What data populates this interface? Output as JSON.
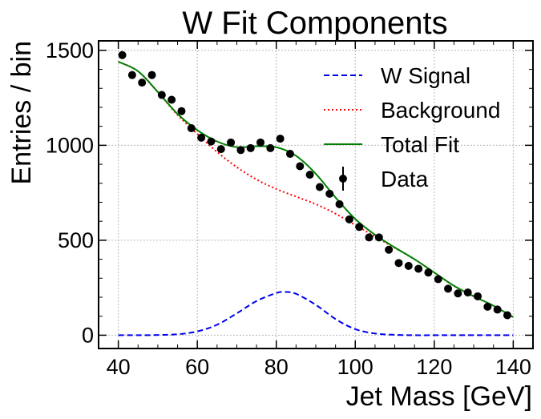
{
  "chart_data": {
    "type": "line",
    "title": "W Fit Components",
    "xlabel": "Jet Mass [GeV]",
    "ylabel": "Entries / bin",
    "xlim": [
      35,
      145
    ],
    "ylim": [
      -70,
      1550
    ],
    "xticks": [
      40,
      60,
      80,
      100,
      120,
      140
    ],
    "yticks": [
      0,
      500,
      1000,
      1500
    ],
    "x_minor_step": 5,
    "y_minor_step": 100,
    "grid": true,
    "legend_position": "top-right",
    "legend": {
      "signal": "W Signal",
      "background": "Background",
      "total": "Total Fit",
      "data": "Data"
    },
    "colors": {
      "signal": "#0000ee",
      "background": "#ff0000",
      "total": "#008000",
      "data": "#000000"
    },
    "series": [
      {
        "name": "W Signal",
        "style": "dashed",
        "x": [
          40,
          45,
          50,
          55,
          60,
          65,
          70,
          75,
          80,
          82,
          85,
          90,
          95,
          100,
          105,
          110,
          115,
          120,
          125,
          130,
          135,
          140
        ],
        "y": [
          0,
          0,
          1,
          5,
          20,
          55,
          115,
          180,
          222,
          228,
          218,
          160,
          85,
          32,
          9,
          2,
          0,
          0,
          0,
          0,
          0,
          0
        ]
      },
      {
        "name": "Background",
        "style": "dotted",
        "x": [
          40,
          45,
          50,
          55,
          60,
          65,
          70,
          75,
          80,
          85,
          90,
          95,
          100,
          105,
          110,
          115,
          120,
          125,
          130,
          135,
          140
        ],
        "y": [
          1440,
          1390,
          1280,
          1160,
          1060,
          965,
          885,
          820,
          770,
          730,
          690,
          640,
          580,
          520,
          460,
          400,
          330,
          260,
          205,
          155,
          95
        ]
      },
      {
        "name": "Total Fit",
        "style": "solid",
        "x": [
          40,
          45,
          50,
          55,
          60,
          65,
          70,
          75,
          80,
          85,
          90,
          95,
          100,
          105,
          110,
          115,
          120,
          125,
          130,
          135,
          140
        ],
        "y": [
          1440,
          1390,
          1281,
          1165,
          1080,
          1020,
          990,
          995,
          990,
          945,
          850,
          725,
          612,
          529,
          462,
          400,
          330,
          260,
          205,
          155,
          95
        ]
      }
    ],
    "data_points": {
      "name": "Data",
      "x": [
        41,
        43.5,
        46,
        48.5,
        51,
        53.5,
        56,
        58.5,
        61,
        63.5,
        66,
        68.5,
        71,
        73.5,
        76,
        78.5,
        81,
        83.5,
        86,
        88.5,
        91,
        93.5,
        96,
        98.5,
        101,
        103.5,
        106,
        108.5,
        111,
        113.5,
        116,
        118.5,
        121,
        123.5,
        126,
        128.5,
        131,
        133.5,
        136,
        138.5
      ],
      "y": [
        1475,
        1370,
        1330,
        1370,
        1265,
        1240,
        1180,
        1090,
        1040,
        1020,
        980,
        1015,
        975,
        985,
        1015,
        985,
        1035,
        955,
        890,
        845,
        780,
        745,
        690,
        610,
        570,
        515,
        515,
        450,
        380,
        365,
        350,
        330,
        295,
        245,
        220,
        225,
        205,
        150,
        135,
        105
      ]
    }
  }
}
